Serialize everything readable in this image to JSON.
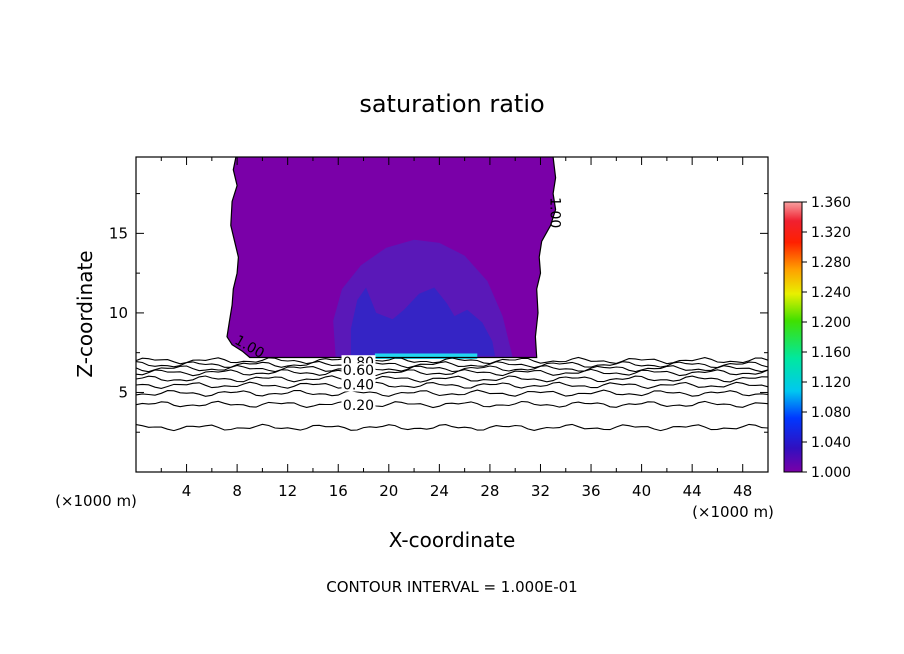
{
  "chart_data": {
    "type": "heatmap",
    "title": "saturation ratio",
    "xlabel": "X-coordinate",
    "ylabel": "Z-coordinate",
    "x_unit_left": "(×1000 m)",
    "x_unit_right": "(×1000 m)",
    "xlim": [
      0,
      50
    ],
    "ylim": [
      0,
      19.8
    ],
    "x_ticks": [
      4,
      8,
      12,
      16,
      20,
      24,
      28,
      32,
      36,
      40,
      44,
      48
    ],
    "y_ticks": [
      5,
      10,
      15
    ],
    "colorbar": {
      "min": 1.0,
      "max": 1.36,
      "labels": [
        "1.360",
        "1.320",
        "1.280",
        "1.240",
        "1.200",
        "1.160",
        "1.120",
        "1.080",
        "1.040",
        "1.000"
      ]
    },
    "contour_labels": [
      {
        "text": "1.00",
        "x": 9.0,
        "z": 7.9
      },
      {
        "text": "1.00",
        "x": 33.2,
        "z": 16.3
      },
      {
        "text": "0.80",
        "x": 17.6,
        "z": 6.9
      },
      {
        "text": "0.60",
        "x": 17.6,
        "z": 6.4
      },
      {
        "text": "0.40",
        "x": 17.6,
        "z": 5.5
      },
      {
        "text": "0.20",
        "x": 17.6,
        "z": 4.2
      }
    ],
    "contour_lines_z": [
      7.0,
      6.75,
      6.5,
      6.25,
      5.85,
      5.45,
      4.95,
      4.25,
      2.8
    ],
    "footer": "CONTOUR INTERVAL = 1.000E-01"
  },
  "colors": {
    "purple": "#7a00a8",
    "indigo": "#5a18b8",
    "blue": "#2c28c8",
    "cyan": "#22d8f0"
  }
}
